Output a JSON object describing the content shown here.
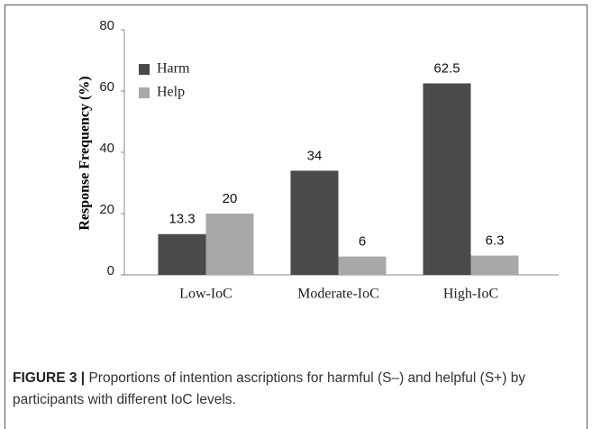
{
  "chart_data": {
    "type": "bar",
    "y_label": "Response Frequency (%)",
    "categories": [
      "Low-IoC",
      "Moderate-IoC",
      "High-IoC"
    ],
    "series": [
      {
        "name": "Harm",
        "color": "#4a4a4a",
        "values": [
          13.3,
          34,
          62.5
        ]
      },
      {
        "name": "Help",
        "color": "#a8a8a8",
        "values": [
          20,
          6,
          6.3
        ]
      }
    ],
    "ylim": [
      0,
      80
    ],
    "yticks": [
      0,
      20,
      40,
      60,
      80
    ],
    "grid": false,
    "legend": "upper-left"
  },
  "caption": {
    "label": "FIGURE 3 |",
    "text": "Proportions of intention ascriptions for harmful (S–) and helpful (S+) by participants with different IoC levels."
  }
}
